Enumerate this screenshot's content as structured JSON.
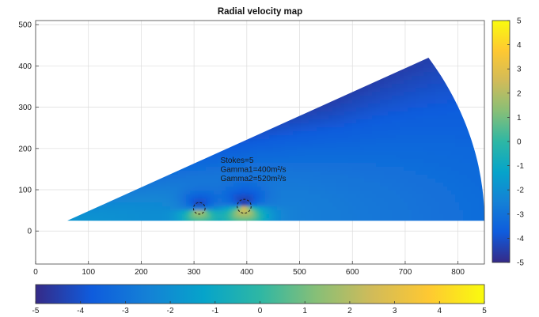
{
  "chart_data": {
    "type": "heatmap",
    "title": "Radial velocity map",
    "xlabel": "",
    "ylabel": "",
    "xlim": [
      0,
      850
    ],
    "ylim": [
      -80,
      510
    ],
    "xticks": [
      0,
      100,
      200,
      300,
      400,
      500,
      600,
      700,
      800
    ],
    "yticks": [
      0,
      100,
      200,
      300,
      400,
      500
    ],
    "grid": true,
    "colorbar": {
      "range": [
        -5,
        5
      ],
      "ticks": [
        -5,
        -4,
        -3,
        -2,
        -1,
        0,
        1,
        2,
        3,
        4,
        5
      ],
      "colormap": "parula",
      "vertical_placement": "right",
      "horizontal_placement": "bottom"
    },
    "sector": {
      "apex": [
        60,
        25
      ],
      "start_angle_deg": 0,
      "end_angle_deg": 30,
      "inner_radius": 0,
      "outer_radius": 790
    },
    "field_summary": {
      "background_value_near": -1.8,
      "background_value_far": -3.2,
      "upper_edge_value": -4.5
    },
    "features": [
      {
        "name": "vortex-1",
        "x": 310,
        "y": 55,
        "radius": 20,
        "peak_positive": 2.8,
        "peak_negative": -4.6
      },
      {
        "name": "vortex-2",
        "x": 395,
        "y": 60,
        "radius": 24,
        "peak_positive": 3.6,
        "peak_negative": -4.8
      }
    ],
    "annotations": [
      "Stokes=5",
      "Gamma1=400m²/s",
      "Gamma2=520m²/s"
    ],
    "annotation_anchor": [
      350,
      165
    ]
  },
  "colors": {
    "parula": [
      "#352a87",
      "#0f5cdd",
      "#1481d6",
      "#06a4ca",
      "#2eb7a4",
      "#87bf77",
      "#d1bb59",
      "#fec832",
      "#f9fb0e"
    ]
  }
}
